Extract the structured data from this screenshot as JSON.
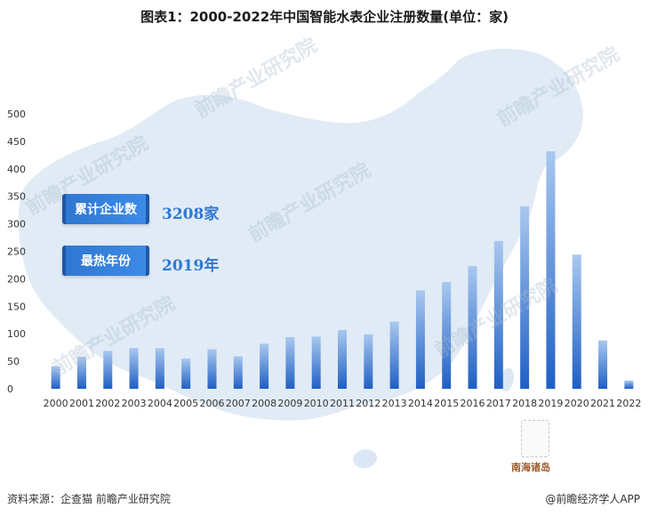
{
  "title": "图表1：2000-2022年中国智能水表企业注册数量(单位：家)",
  "stats": [
    {
      "label": "累计企业数",
      "value": "3208家"
    },
    {
      "label": "最热年份",
      "value": "2019年"
    }
  ],
  "map": {
    "island_label": "南海诸岛"
  },
  "watermark": "前瞻产业研究院",
  "footer": {
    "source": "资料来源：企查猫 前瞻产业研究院",
    "brand": "@前瞻经济学人APP"
  },
  "colors": {
    "bar_top": "#a9c8ef",
    "bar_bottom": "#1f5fc4",
    "map": "#dbe7f5"
  },
  "chart_data": {
    "type": "bar",
    "title": "图表1：2000-2022年中国智能水表企业注册数量(单位：家)",
    "categories": [
      "2000",
      "2001",
      "2002",
      "2003",
      "2004",
      "2005",
      "2006",
      "2007",
      "2008",
      "2009",
      "2010",
      "2011",
      "2012",
      "2013",
      "2014",
      "2015",
      "2016",
      "2017",
      "2018",
      "2019",
      "2020",
      "2021",
      "2022"
    ],
    "values": [
      41,
      58,
      69,
      74,
      74,
      55,
      72,
      59,
      82,
      94,
      95,
      107,
      99,
      122,
      179,
      194,
      223,
      269,
      332,
      432,
      244,
      88,
      15
    ],
    "yticks": [
      0,
      50,
      100,
      150,
      200,
      250,
      300,
      350,
      400,
      450,
      500
    ],
    "ylim": [
      0,
      500
    ],
    "grid": false
  }
}
